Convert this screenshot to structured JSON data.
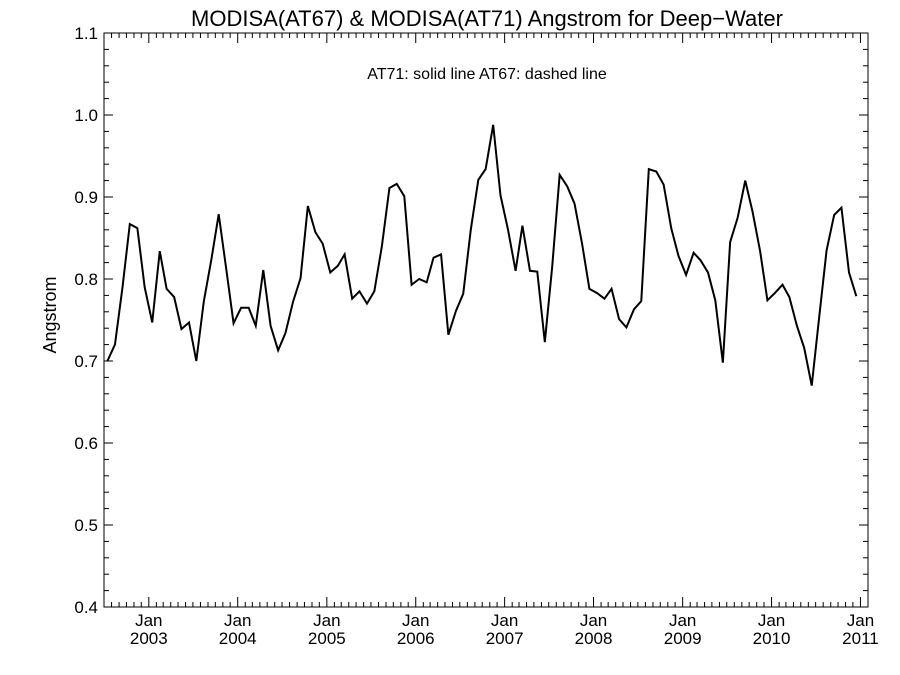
{
  "chart_data": {
    "type": "line",
    "title": "MODISA(AT67) & MODISA(AT71)  Angstrom for Deep−Water",
    "legend_text": "AT71: solid line   AT67: dashed line",
    "ylabel": "Angstrom",
    "xlabel": "",
    "ylim": [
      0.4,
      1.1
    ],
    "yticks": [
      0.4,
      0.5,
      0.6,
      0.7,
      0.8,
      0.9,
      1.0,
      1.1
    ],
    "yticks_labels": [
      "0.4",
      "0.5",
      "0.6",
      "0.7",
      "0.8",
      "0.9",
      "1.0",
      "1.1"
    ],
    "x_range": [
      "2002-07-01",
      "2011-01-31"
    ],
    "xticks": [
      {
        "date": "2003-01-01",
        "month": "Jan",
        "year": "2003"
      },
      {
        "date": "2004-01-01",
        "month": "Jan",
        "year": "2004"
      },
      {
        "date": "2005-01-01",
        "month": "Jan",
        "year": "2005"
      },
      {
        "date": "2006-01-01",
        "month": "Jan",
        "year": "2006"
      },
      {
        "date": "2007-01-01",
        "month": "Jan",
        "year": "2007"
      },
      {
        "date": "2008-01-01",
        "month": "Jan",
        "year": "2008"
      },
      {
        "date": "2009-01-01",
        "month": "Jan",
        "year": "2009"
      },
      {
        "date": "2010-01-01",
        "month": "Jan",
        "year": "2010"
      },
      {
        "date": "2011-01-01",
        "month": "Jan",
        "year": "2011"
      }
    ],
    "grid": false,
    "line_color": "#000000",
    "series": [
      {
        "style": "solid",
        "start": "2002-07",
        "values": [
          0.7,
          0.72,
          0.79,
          0.867,
          0.862,
          0.79,
          0.747,
          0.834,
          0.788,
          0.778,
          0.739,
          0.747,
          0.7,
          0.773,
          0.824,
          0.879,
          0.812,
          0.746,
          0.765,
          0.765,
          0.743,
          0.811,
          0.743,
          0.713,
          0.734,
          0.772,
          0.801,
          0.889,
          0.857,
          0.843,
          0.808,
          0.816,
          0.83,
          0.776,
          0.785,
          0.77,
          0.785,
          0.84,
          0.911,
          0.916,
          0.901,
          0.793,
          0.8,
          0.796,
          0.826,
          0.83,
          0.732,
          0.761,
          0.782,
          0.86,
          0.921,
          0.934,
          0.988,
          0.902,
          0.86,
          0.81,
          0.865,
          0.81,
          0.809,
          0.723,
          0.814,
          0.927,
          0.913,
          0.892,
          0.843,
          0.788,
          0.783,
          0.776,
          0.788,
          0.751,
          0.741,
          0.763,
          0.773,
          0.934,
          0.931,
          0.915,
          0.862,
          0.828,
          0.805,
          0.832,
          0.823,
          0.808,
          0.774,
          0.698,
          0.845,
          0.875,
          0.92,
          0.882,
          0.834,
          0.774,
          0.783,
          0.793,
          0.778,
          0.743,
          0.716,
          0.67,
          0.752,
          0.835,
          0.878,
          0.887,
          0.808,
          0.779
        ]
      }
    ]
  }
}
